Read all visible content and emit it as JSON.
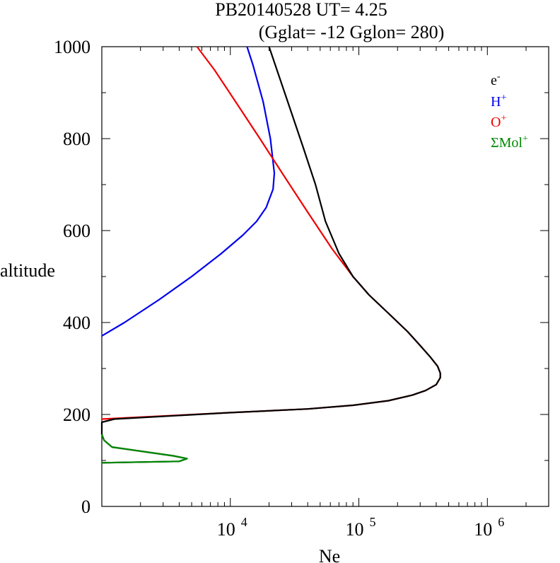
{
  "chart_data": {
    "type": "line",
    "title_line1": "PB20140528   UT=  4.25",
    "title_line2": "(Gglat= -12   Gglon=  280)",
    "xlabel": "Ne",
    "ylabel": "altitude",
    "x_scale": "log",
    "xlim": [
      1000,
      3000000
    ],
    "ylim": [
      0,
      1000
    ],
    "y_ticks": [
      0,
      200,
      400,
      600,
      800,
      1000
    ],
    "x_ticks": [
      {
        "value": 10000,
        "base": "10",
        "exp": "4"
      },
      {
        "value": 100000,
        "base": "10",
        "exp": "5"
      },
      {
        "value": 1000000,
        "base": "10",
        "exp": "6"
      }
    ],
    "legend_position": "top-right",
    "series": [
      {
        "name": "e",
        "sup": "-",
        "color": "#000000",
        "points": [
          [
            1000,
            95
          ],
          [
            4000,
            98
          ],
          [
            4600,
            104
          ],
          [
            3600,
            110
          ],
          [
            1200,
            129
          ],
          [
            1040,
            144
          ],
          [
            1000,
            157
          ],
          [
            1000,
            183
          ],
          [
            1250,
            190
          ],
          [
            10000,
            204
          ],
          [
            40000,
            212
          ],
          [
            90000,
            220
          ],
          [
            170000,
            230
          ],
          [
            260000,
            242
          ],
          [
            330000,
            252
          ],
          [
            400000,
            265
          ],
          [
            430000,
            280
          ],
          [
            430000,
            290
          ],
          [
            410000,
            305
          ],
          [
            360000,
            325
          ],
          [
            300000,
            350
          ],
          [
            240000,
            380
          ],
          [
            170000,
            420
          ],
          [
            120000,
            460
          ],
          [
            90000,
            500
          ],
          [
            70000,
            550
          ],
          [
            55000,
            620
          ],
          [
            46000,
            700
          ],
          [
            37000,
            780
          ],
          [
            28000,
            880
          ],
          [
            20000,
            1000
          ]
        ]
      },
      {
        "name": "H",
        "sup": "+",
        "color": "#0000ee",
        "points": [
          [
            1000,
            371
          ],
          [
            1500,
            400
          ],
          [
            2800,
            450
          ],
          [
            5000,
            500
          ],
          [
            8500,
            550
          ],
          [
            12500,
            590
          ],
          [
            16000,
            620
          ],
          [
            19000,
            650
          ],
          [
            21500,
            690
          ],
          [
            22000,
            725
          ],
          [
            20500,
            800
          ],
          [
            18000,
            880
          ],
          [
            15000,
            960
          ],
          [
            13500,
            1000
          ]
        ]
      },
      {
        "name": "O",
        "sup": "+",
        "color": "#ee0000",
        "points": [
          [
            1000,
            190
          ],
          [
            10000,
            204
          ],
          [
            40000,
            212
          ],
          [
            90000,
            220
          ],
          [
            170000,
            230
          ],
          [
            260000,
            242
          ],
          [
            330000,
            252
          ],
          [
            400000,
            265
          ],
          [
            430000,
            280
          ],
          [
            430000,
            290
          ],
          [
            410000,
            305
          ],
          [
            360000,
            325
          ],
          [
            300000,
            350
          ],
          [
            240000,
            380
          ],
          [
            170000,
            420
          ],
          [
            120000,
            460
          ],
          [
            90000,
            500
          ],
          [
            62000,
            560
          ],
          [
            40000,
            640
          ],
          [
            26000,
            720
          ],
          [
            17000,
            800
          ],
          [
            11000,
            880
          ],
          [
            7500,
            950
          ],
          [
            5500,
            1000
          ]
        ]
      },
      {
        "name": "ΣMol",
        "sup": "+",
        "color": "#008800",
        "points": [
          [
            1000,
            95
          ],
          [
            4000,
            98
          ],
          [
            4600,
            104
          ],
          [
            3600,
            110
          ],
          [
            1200,
            129
          ],
          [
            1040,
            144
          ],
          [
            1000,
            157
          ]
        ]
      }
    ]
  }
}
